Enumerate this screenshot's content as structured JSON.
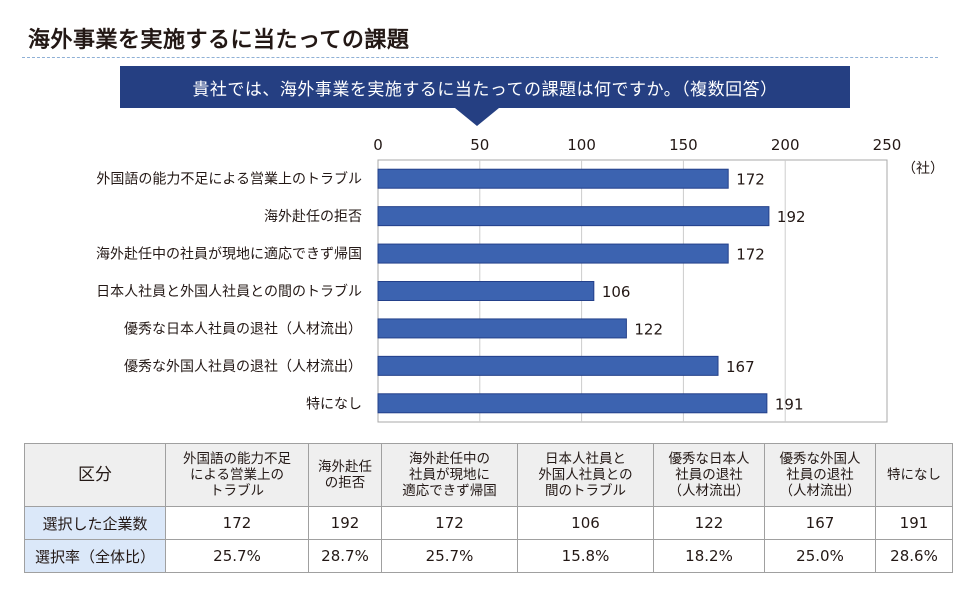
{
  "page": {
    "title": "海外事業を実施するに当たっての課題",
    "question": "貴社では、海外事業を実施するに当たっての課題は何ですか。（複数回答）",
    "accent_color": "#253f82",
    "bar_color": "#3c63b0"
  },
  "chart_data": {
    "type": "bar",
    "orientation": "horizontal",
    "title": "海外事業を実施するに当たっての課題",
    "xlabel": "",
    "unit": "（社）",
    "xlim": [
      0,
      250
    ],
    "xticks": [
      0,
      50,
      100,
      150,
      200,
      250
    ],
    "grid": true,
    "categories": [
      "外国語の能力不足による営業上のトラブル",
      "海外赴任の拒否",
      "海外赴任中の社員が現地に適応できず帰国",
      "日本人社員と外国人社員との間のトラブル",
      "優秀な日本人社員の退社（人材流出）",
      "優秀な外国人社員の退社（人材流出）",
      "特になし"
    ],
    "values": [
      172,
      192,
      172,
      106,
      122,
      167,
      191
    ]
  },
  "table": {
    "corner": "区分",
    "columns": [
      [
        "外国語の能力不足",
        "による営業上の",
        "トラブル"
      ],
      [
        "海外赴任",
        "の拒否"
      ],
      [
        "海外赴任中の",
        "社員が現地に",
        "適応できず帰国"
      ],
      [
        "日本人社員と",
        "外国人社員との",
        "間のトラブル"
      ],
      [
        "優秀な日本人",
        "社員の退社",
        "（人材流出）"
      ],
      [
        "優秀な外国人",
        "社員の退社",
        "（人材流出）"
      ],
      [
        "特になし"
      ]
    ],
    "rows": [
      {
        "label": "選択した企業数",
        "cells": [
          "172",
          "192",
          "172",
          "106",
          "122",
          "167",
          "191"
        ]
      },
      {
        "label": "選択率（全体比）",
        "cells": [
          "25.7%",
          "28.7%",
          "25.7%",
          "15.8%",
          "18.2%",
          "25.0%",
          "28.6%"
        ]
      }
    ]
  }
}
